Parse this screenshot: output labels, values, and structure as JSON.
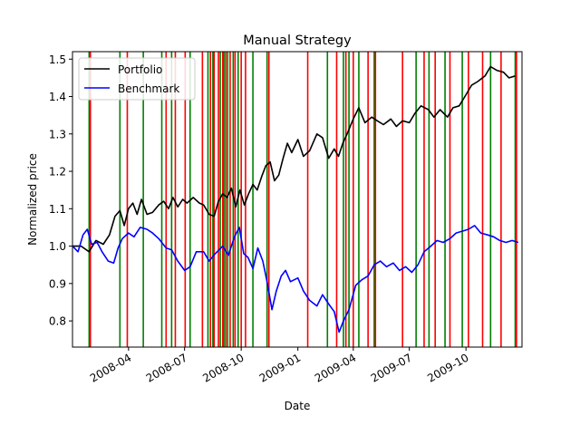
{
  "chart_data": {
    "type": "line",
    "title": "Manual Strategy",
    "xlabel": "Date",
    "ylabel": "Normalized price",
    "xlim": [
      "2008-01-01",
      "2009-12-31"
    ],
    "ylim": [
      0.73,
      1.52
    ],
    "x_ticks": [
      "2008-04",
      "2008-07",
      "2008-10",
      "2009-01",
      "2009-04",
      "2009-07",
      "2009-10"
    ],
    "y_ticks": [
      0.8,
      0.9,
      1.0,
      1.1,
      1.2,
      1.3,
      1.4,
      1.5
    ],
    "legend": {
      "position": "top-left"
    },
    "series": [
      {
        "name": "Portfolio",
        "color": "#000000",
        "points": [
          [
            "2008-01-01",
            1.0
          ],
          [
            "2008-01-15",
            1.0
          ],
          [
            "2008-01-28",
            0.985
          ],
          [
            "2008-02-08",
            1.015
          ],
          [
            "2008-02-20",
            1.005
          ],
          [
            "2008-03-01",
            1.03
          ],
          [
            "2008-03-10",
            1.08
          ],
          [
            "2008-03-18",
            1.095
          ],
          [
            "2008-03-25",
            1.055
          ],
          [
            "2008-04-01",
            1.1
          ],
          [
            "2008-04-08",
            1.115
          ],
          [
            "2008-04-15",
            1.085
          ],
          [
            "2008-04-22",
            1.125
          ],
          [
            "2008-05-01",
            1.085
          ],
          [
            "2008-05-10",
            1.09
          ],
          [
            "2008-05-20",
            1.11
          ],
          [
            "2008-05-28",
            1.12
          ],
          [
            "2008-06-05",
            1.1
          ],
          [
            "2008-06-12",
            1.13
          ],
          [
            "2008-06-20",
            1.105
          ],
          [
            "2008-06-28",
            1.125
          ],
          [
            "2008-07-05",
            1.115
          ],
          [
            "2008-07-15",
            1.13
          ],
          [
            "2008-07-25",
            1.115
          ],
          [
            "2008-08-01",
            1.11
          ],
          [
            "2008-08-10",
            1.085
          ],
          [
            "2008-08-18",
            1.08
          ],
          [
            "2008-08-25",
            1.12
          ],
          [
            "2008-09-01",
            1.14
          ],
          [
            "2008-09-08",
            1.13
          ],
          [
            "2008-09-15",
            1.155
          ],
          [
            "2008-09-22",
            1.105
          ],
          [
            "2008-09-29",
            1.15
          ],
          [
            "2008-10-06",
            1.11
          ],
          [
            "2008-10-13",
            1.14
          ],
          [
            "2008-10-20",
            1.165
          ],
          [
            "2008-10-27",
            1.15
          ],
          [
            "2008-11-03",
            1.185
          ],
          [
            "2008-11-10",
            1.215
          ],
          [
            "2008-11-17",
            1.225
          ],
          [
            "2008-11-24",
            1.175
          ],
          [
            "2008-12-01",
            1.19
          ],
          [
            "2008-12-08",
            1.235
          ],
          [
            "2008-12-15",
            1.275
          ],
          [
            "2008-12-22",
            1.25
          ],
          [
            "2009-01-01",
            1.285
          ],
          [
            "2009-01-10",
            1.24
          ],
          [
            "2009-01-20",
            1.255
          ],
          [
            "2009-02-01",
            1.3
          ],
          [
            "2009-02-10",
            1.29
          ],
          [
            "2009-02-20",
            1.235
          ],
          [
            "2009-03-01",
            1.26
          ],
          [
            "2009-03-08",
            1.24
          ],
          [
            "2009-03-15",
            1.275
          ],
          [
            "2009-03-22",
            1.3
          ],
          [
            "2009-04-01",
            1.34
          ],
          [
            "2009-04-10",
            1.37
          ],
          [
            "2009-04-20",
            1.33
          ],
          [
            "2009-05-01",
            1.345
          ],
          [
            "2009-05-10",
            1.335
          ],
          [
            "2009-05-20",
            1.325
          ],
          [
            "2009-06-01",
            1.34
          ],
          [
            "2009-06-10",
            1.32
          ],
          [
            "2009-06-20",
            1.335
          ],
          [
            "2009-07-01",
            1.33
          ],
          [
            "2009-07-10",
            1.355
          ],
          [
            "2009-07-20",
            1.375
          ],
          [
            "2009-08-01",
            1.365
          ],
          [
            "2009-08-10",
            1.345
          ],
          [
            "2009-08-20",
            1.365
          ],
          [
            "2009-09-01",
            1.345
          ],
          [
            "2009-09-10",
            1.37
          ],
          [
            "2009-09-20",
            1.375
          ],
          [
            "2009-10-01",
            1.405
          ],
          [
            "2009-10-10",
            1.43
          ],
          [
            "2009-10-20",
            1.44
          ],
          [
            "2009-11-01",
            1.455
          ],
          [
            "2009-11-10",
            1.48
          ],
          [
            "2009-11-20",
            1.47
          ],
          [
            "2009-12-01",
            1.465
          ],
          [
            "2009-12-10",
            1.45
          ],
          [
            "2009-12-20",
            1.455
          ]
        ]
      },
      {
        "name": "Benchmark",
        "color": "#0000ff",
        "points": [
          [
            "2008-01-01",
            1.0
          ],
          [
            "2008-01-10",
            0.985
          ],
          [
            "2008-01-18",
            1.03
          ],
          [
            "2008-01-25",
            1.045
          ],
          [
            "2008-02-01",
            1.005
          ],
          [
            "2008-02-10",
            1.01
          ],
          [
            "2008-02-18",
            0.985
          ],
          [
            "2008-02-28",
            0.96
          ],
          [
            "2008-03-08",
            0.955
          ],
          [
            "2008-03-15",
            0.995
          ],
          [
            "2008-03-22",
            1.02
          ],
          [
            "2008-04-01",
            1.035
          ],
          [
            "2008-04-10",
            1.025
          ],
          [
            "2008-04-20",
            1.05
          ],
          [
            "2008-05-01",
            1.045
          ],
          [
            "2008-05-10",
            1.035
          ],
          [
            "2008-05-20",
            1.02
          ],
          [
            "2008-06-01",
            0.995
          ],
          [
            "2008-06-10",
            0.99
          ],
          [
            "2008-06-20",
            0.96
          ],
          [
            "2008-07-01",
            0.935
          ],
          [
            "2008-07-10",
            0.945
          ],
          [
            "2008-07-20",
            0.985
          ],
          [
            "2008-08-01",
            0.985
          ],
          [
            "2008-08-10",
            0.96
          ],
          [
            "2008-08-20",
            0.98
          ],
          [
            "2008-09-01",
            1.0
          ],
          [
            "2008-09-10",
            0.975
          ],
          [
            "2008-09-20",
            1.025
          ],
          [
            "2008-09-28",
            1.05
          ],
          [
            "2008-10-05",
            0.98
          ],
          [
            "2008-10-12",
            0.97
          ],
          [
            "2008-10-20",
            0.94
          ],
          [
            "2008-10-28",
            0.995
          ],
          [
            "2008-11-05",
            0.96
          ],
          [
            "2008-11-12",
            0.905
          ],
          [
            "2008-11-20",
            0.83
          ],
          [
            "2008-11-27",
            0.88
          ],
          [
            "2008-12-05",
            0.92
          ],
          [
            "2008-12-12",
            0.935
          ],
          [
            "2008-12-20",
            0.905
          ],
          [
            "2009-01-01",
            0.915
          ],
          [
            "2009-01-10",
            0.88
          ],
          [
            "2009-01-20",
            0.855
          ],
          [
            "2009-02-01",
            0.84
          ],
          [
            "2009-02-10",
            0.87
          ],
          [
            "2009-02-20",
            0.845
          ],
          [
            "2009-03-01",
            0.825
          ],
          [
            "2009-03-09",
            0.77
          ],
          [
            "2009-03-16",
            0.8
          ],
          [
            "2009-03-25",
            0.83
          ],
          [
            "2009-04-05",
            0.895
          ],
          [
            "2009-04-15",
            0.91
          ],
          [
            "2009-04-25",
            0.92
          ],
          [
            "2009-05-05",
            0.95
          ],
          [
            "2009-05-15",
            0.96
          ],
          [
            "2009-05-25",
            0.945
          ],
          [
            "2009-06-05",
            0.955
          ],
          [
            "2009-06-15",
            0.935
          ],
          [
            "2009-06-25",
            0.945
          ],
          [
            "2009-07-05",
            0.93
          ],
          [
            "2009-07-15",
            0.95
          ],
          [
            "2009-07-25",
            0.985
          ],
          [
            "2009-08-05",
            1.0
          ],
          [
            "2009-08-15",
            1.015
          ],
          [
            "2009-08-25",
            1.01
          ],
          [
            "2009-09-05",
            1.02
          ],
          [
            "2009-09-15",
            1.035
          ],
          [
            "2009-09-25",
            1.04
          ],
          [
            "2009-10-05",
            1.045
          ],
          [
            "2009-10-15",
            1.055
          ],
          [
            "2009-10-25",
            1.035
          ],
          [
            "2009-11-05",
            1.03
          ],
          [
            "2009-11-15",
            1.025
          ],
          [
            "2009-11-25",
            1.015
          ],
          [
            "2009-12-05",
            1.01
          ],
          [
            "2009-12-15",
            1.015
          ],
          [
            "2009-12-25",
            1.01
          ]
        ]
      }
    ],
    "signal_lines": {
      "long_color": "#008000",
      "short_color": "#ff0000",
      "long": [
        "2008-01-28",
        "2008-03-18",
        "2008-04-25",
        "2008-05-25",
        "2008-06-10",
        "2008-07-10",
        "2008-08-08",
        "2008-08-16",
        "2008-08-28",
        "2008-09-03",
        "2008-09-09",
        "2008-09-18",
        "2008-09-26",
        "2008-10-20",
        "2008-11-12",
        "2009-02-18",
        "2009-03-16",
        "2009-03-25",
        "2009-04-10",
        "2009-05-05",
        "2009-07-12",
        "2009-08-02",
        "2009-08-28",
        "2009-09-25",
        "2009-11-10",
        "2009-12-20"
      ],
      "short": [
        "2008-01-30",
        "2008-03-30",
        "2008-06-01",
        "2008-06-16",
        "2008-07-02",
        "2008-07-30",
        "2008-08-12",
        "2008-08-18",
        "2008-08-25",
        "2008-09-01",
        "2008-09-06",
        "2008-09-13",
        "2008-09-21",
        "2008-10-01",
        "2008-10-08",
        "2008-11-15",
        "2009-01-17",
        "2009-03-05",
        "2009-03-20",
        "2009-04-01",
        "2009-04-25",
        "2009-05-07",
        "2009-06-20",
        "2009-07-25",
        "2009-08-12",
        "2009-09-05",
        "2009-10-05",
        "2009-10-28",
        "2009-11-27",
        "2009-12-22"
      ]
    }
  }
}
